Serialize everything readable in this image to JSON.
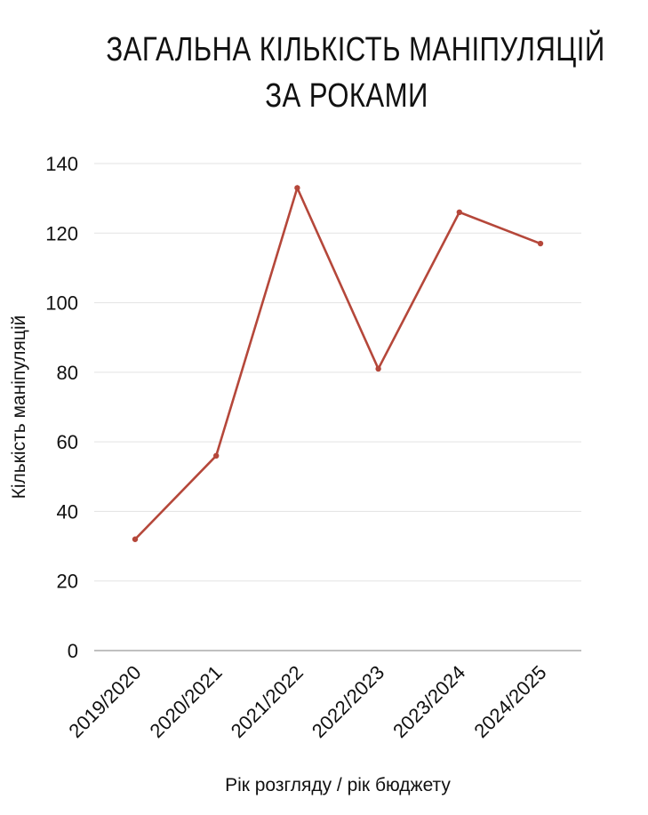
{
  "chart_data": {
    "type": "line",
    "title_lines": [
      "ЗАГАЛЬНА КІЛЬКІСТЬ МАНІПУЛЯЦІЙ",
      "ЗА РОКАМИ"
    ],
    "categories": [
      "2019/2020",
      "2020/2021",
      "2021/2022",
      "2022/2023",
      "2023/2024",
      "2024/2025"
    ],
    "series": [
      {
        "values": [
          32,
          56,
          133,
          81,
          126,
          117
        ],
        "color": "#b5473a"
      }
    ],
    "xlabel": "Рік розгляду / рік бюджету",
    "ylabel": "Кількість маніпуляцій",
    "ylim": [
      0,
      140
    ],
    "yticks": [
      0,
      20,
      40,
      60,
      80,
      100,
      120,
      140
    ],
    "grid": true,
    "legend": "none",
    "grid_color": "#e3e3e3",
    "axis_color": "#9a9a9a"
  }
}
